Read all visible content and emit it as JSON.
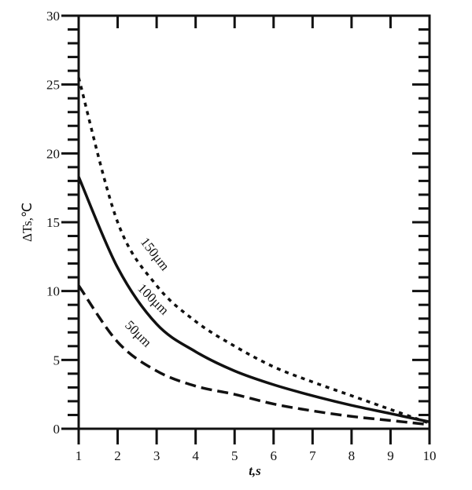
{
  "chart_data": {
    "type": "line",
    "title": "",
    "xlabel": "t,s",
    "ylabel": "ΔTs,℃",
    "xlim": [
      1,
      10
    ],
    "ylim": [
      0,
      30
    ],
    "x_ticks": [
      "1",
      "2",
      "3",
      "4",
      "5",
      "6",
      "7",
      "8",
      "9",
      "10"
    ],
    "y_ticks": [
      "0",
      "5",
      "10",
      "15",
      "20",
      "25",
      "30"
    ],
    "grid": false,
    "x": [
      1,
      2,
      3,
      4,
      5,
      6,
      7,
      8,
      9,
      10
    ],
    "series": [
      {
        "name": "150μm",
        "style": "dotted",
        "values": [
          25.5,
          15.0,
          10.4,
          7.8,
          6.0,
          4.5,
          3.4,
          2.4,
          1.4,
          0.4
        ]
      },
      {
        "name": "100μm",
        "style": "solid",
        "values": [
          18.3,
          11.7,
          7.6,
          5.6,
          4.2,
          3.2,
          2.4,
          1.7,
          1.1,
          0.5
        ]
      },
      {
        "name": "50μm",
        "style": "dashed",
        "values": [
          10.4,
          6.3,
          4.2,
          3.1,
          2.5,
          1.8,
          1.3,
          0.9,
          0.6,
          0.3
        ]
      }
    ],
    "color": "#111111"
  }
}
